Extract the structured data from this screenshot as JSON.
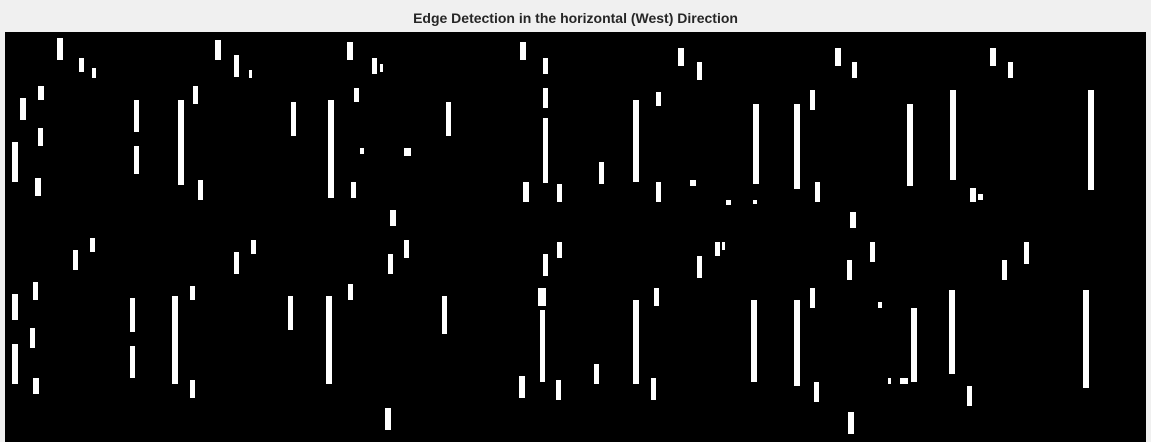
{
  "figure": {
    "title": "Edge Detection in the horizontal (West) Direction"
  }
}
